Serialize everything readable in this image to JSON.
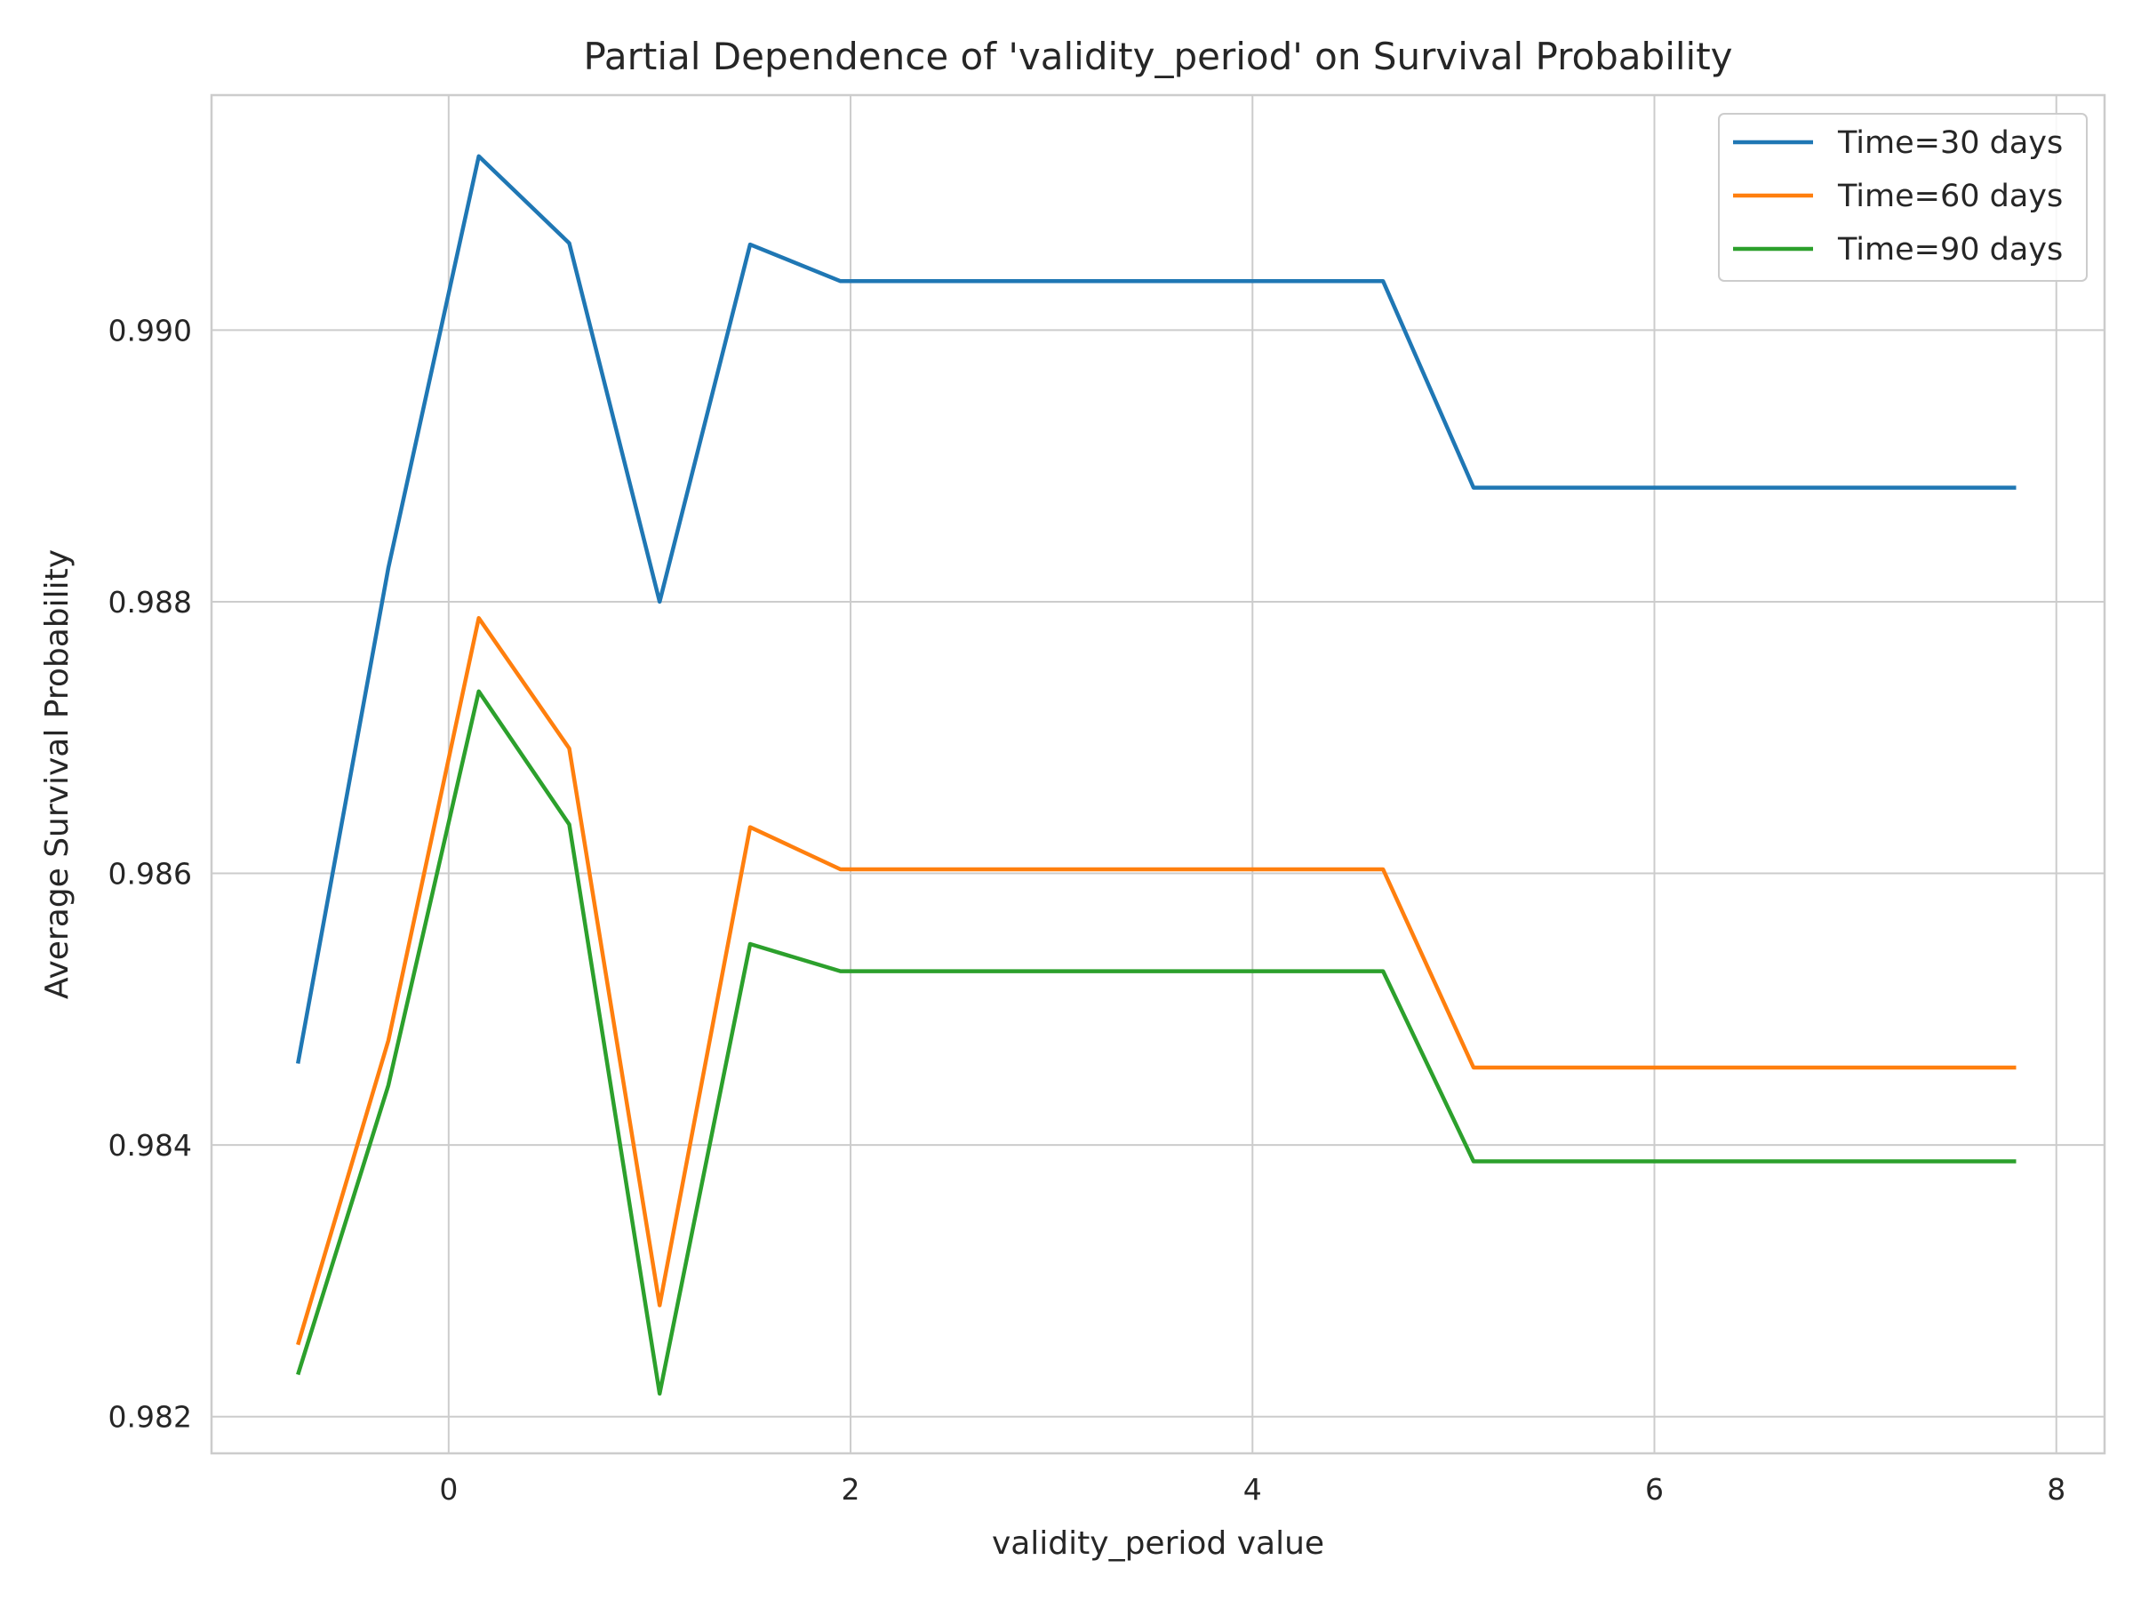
{
  "chart_data": {
    "type": "line",
    "title": "Partial Dependence of 'validity_period' on Survival Probability",
    "xlabel": "validity_period value",
    "ylabel": "Average Survival Probability",
    "xlim": [
      -1.18,
      8.24
    ],
    "ylim": [
      0.98173,
      0.99173
    ],
    "xticks": [
      0,
      2,
      4,
      6,
      8
    ],
    "yticks": [
      0.982,
      0.984,
      0.986,
      0.988,
      0.99
    ],
    "xtick_labels": [
      "0",
      "2",
      "4",
      "6",
      "8"
    ],
    "ytick_labels": [
      "0.982",
      "0.984",
      "0.986",
      "0.988",
      "0.990"
    ],
    "grid": true,
    "legend_position": "top-right",
    "x": [
      -0.75,
      -0.3,
      0.15,
      0.6,
      1.05,
      1.5,
      1.95,
      2.4,
      2.85,
      3.3,
      3.75,
      4.2,
      4.65,
      5.1,
      5.55,
      6.0,
      6.45,
      6.9,
      7.35,
      7.8
    ],
    "series": [
      {
        "name": "Time=30 days",
        "color": "#1f77b4",
        "values": [
          0.9846,
          0.98825,
          0.99128,
          0.99064,
          0.988,
          0.99063,
          0.99036,
          0.99036,
          0.99036,
          0.99036,
          0.99036,
          0.99036,
          0.99036,
          0.98884,
          0.98884,
          0.98884,
          0.98884,
          0.98884,
          0.98884,
          0.98884
        ]
      },
      {
        "name": "Time=60 days",
        "color": "#ff7f0e",
        "values": [
          0.98253,
          0.98477,
          0.98788,
          0.98692,
          0.98282,
          0.98634,
          0.98603,
          0.98603,
          0.98603,
          0.98603,
          0.98603,
          0.98603,
          0.98603,
          0.98457,
          0.98457,
          0.98457,
          0.98457,
          0.98457,
          0.98457,
          0.98457
        ]
      },
      {
        "name": "Time=90 days",
        "color": "#2ca02c",
        "values": [
          0.98231,
          0.98444,
          0.98734,
          0.98636,
          0.98217,
          0.98548,
          0.98528,
          0.98528,
          0.98528,
          0.98528,
          0.98528,
          0.98528,
          0.98528,
          0.98388,
          0.98388,
          0.98388,
          0.98388,
          0.98388,
          0.98388,
          0.98388
        ]
      }
    ]
  }
}
